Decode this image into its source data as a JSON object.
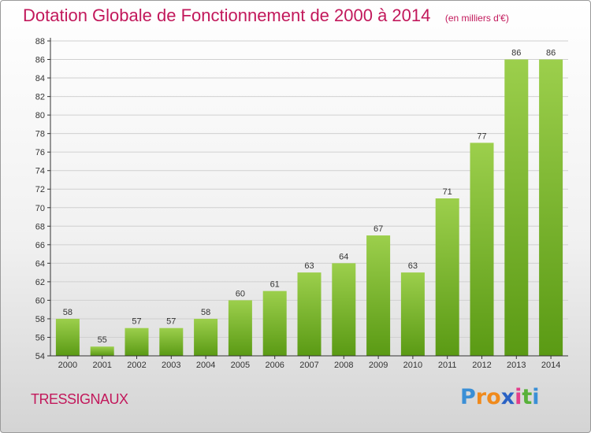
{
  "colors": {
    "title": "#c2185b",
    "bar_top": "#9ccf4c",
    "bar_bottom": "#5a9a14",
    "axis": "#333333",
    "grid": "#d0d0d0"
  },
  "commune": "TRESSIGNAUX",
  "logo": {
    "letters": [
      "P",
      "r",
      "o",
      "x",
      "i",
      "t",
      "i"
    ],
    "colors": [
      "#3a8fd6",
      "#f08a1c",
      "#f08a1c",
      "#2a62c4",
      "#e33d8b",
      "#58b13a",
      "#3a8fd6"
    ]
  },
  "chart_data": {
    "type": "bar",
    "title": "Dotation Globale de Fonctionnement de 2000 à 2014",
    "subtitle": "(en milliers d'€)",
    "categories": [
      "2000",
      "2001",
      "2002",
      "2003",
      "2004",
      "2005",
      "2006",
      "2007",
      "2008",
      "2009",
      "2010",
      "2011",
      "2012",
      "2013",
      "2014"
    ],
    "values": [
      58,
      55,
      57,
      57,
      58,
      60,
      61,
      63,
      64,
      67,
      63,
      71,
      77,
      86,
      86
    ],
    "ylim": [
      54,
      88
    ],
    "yticks": [
      54,
      56,
      58,
      60,
      62,
      64,
      66,
      68,
      70,
      72,
      74,
      76,
      78,
      80,
      82,
      84,
      86,
      88
    ],
    "grid": true,
    "xlabel": "",
    "ylabel": ""
  }
}
